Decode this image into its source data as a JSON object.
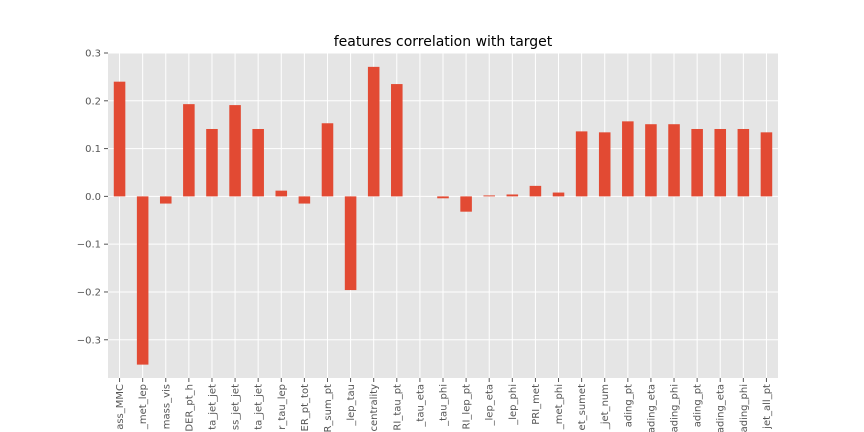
{
  "chart_data": {
    "type": "bar",
    "title": "features correlation with target",
    "xlabel": "",
    "ylabel": "",
    "ylim": [
      -0.38,
      0.3
    ],
    "yticks": [
      0.3,
      0.2,
      0.1,
      0.0,
      -0.1,
      -0.2,
      -0.3
    ],
    "ytick_labels": [
      "0.3",
      "0.2",
      "0.1",
      "0.0",
      "−0.1",
      "−0.2",
      "−0.3"
    ],
    "grid": true,
    "bar_color": "#E24A33",
    "background_color": "#E5E5E5",
    "grid_color": "#FFFFFF",
    "categories": [
      "ass_MMC",
      "_met_lep",
      "mass_vis",
      "DER_pt_h",
      "ta_jet_jet",
      "ss_jet_jet",
      "ta_jet_jet",
      "r_tau_lep",
      "ER_pt_tot",
      "R_sum_pt",
      "_lep_tau",
      "centrality",
      "RI_tau_pt",
      "_tau_eta",
      "_tau_phi",
      "RI_lep_pt",
      "_lep_eta",
      "_lep_phi",
      "PRI_met",
      "_met_phi",
      "et_sumet",
      "_jet_num",
      "ading_pt",
      "ading_eta",
      "ading_phi",
      "ading_pt",
      "ading_eta",
      "ading_phi",
      "jet_all_pt"
    ],
    "values": [
      0.24,
      -0.352,
      -0.015,
      0.193,
      0.141,
      0.191,
      0.141,
      0.012,
      -0.015,
      0.153,
      -0.196,
      0.271,
      0.235,
      0.0,
      -0.004,
      -0.032,
      0.002,
      0.004,
      0.022,
      0.008,
      0.136,
      0.134,
      0.157,
      0.151,
      0.151,
      0.141,
      0.141,
      0.141,
      0.134
    ]
  }
}
